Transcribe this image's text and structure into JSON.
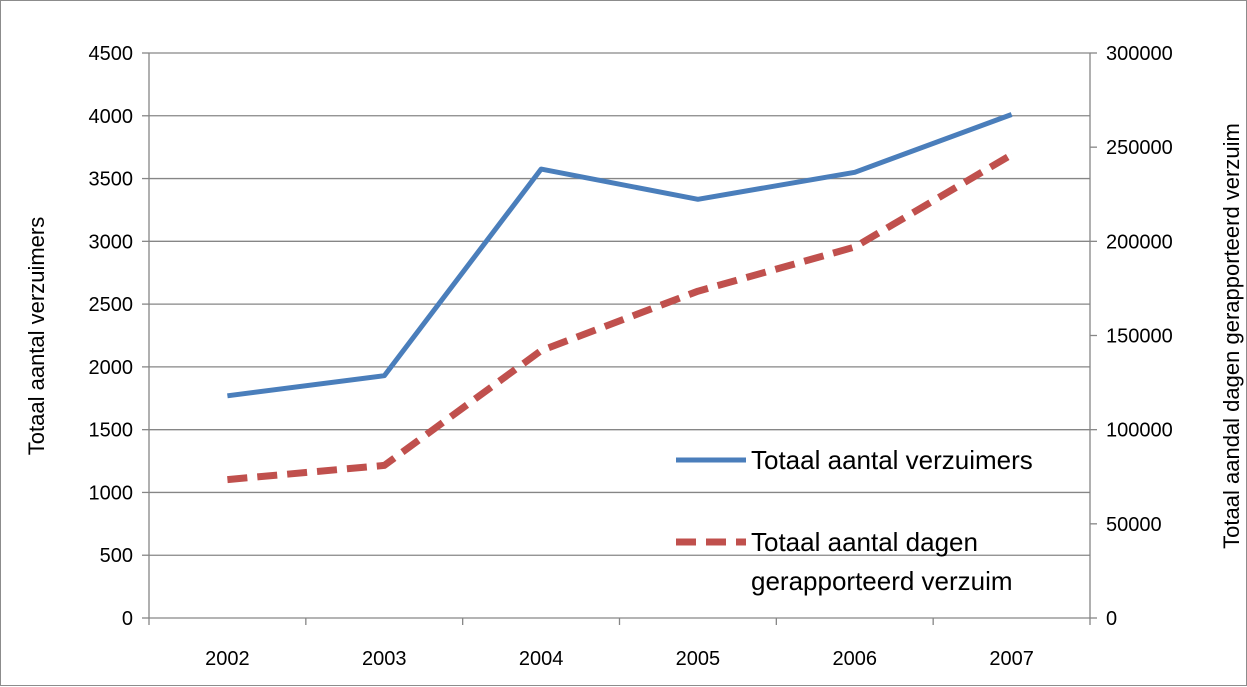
{
  "chart_data": {
    "type": "line",
    "categories": [
      "2002",
      "2003",
      "2004",
      "2005",
      "2006",
      "2007"
    ],
    "series": [
      {
        "name": "Totaal aantal verzuimers",
        "axis": "left",
        "color": "#4a7ebb",
        "style": "solid",
        "values": [
          1770,
          1930,
          3575,
          3335,
          3550,
          4010
        ]
      },
      {
        "name": "Totaal aantal dagen gerapporteerd verzuim",
        "legend_lines": [
          "Totaal aantal dagen",
          "gerapporteerd verzuim"
        ],
        "axis": "right",
        "color": "#c0504d",
        "style": "dashed",
        "values": [
          73500,
          81000,
          142000,
          173500,
          197000,
          246000
        ]
      }
    ],
    "ylabel": "Totaal aantal verzuimers",
    "ylim": [
      0,
      4500
    ],
    "yticks": [
      "0",
      "500",
      "1000",
      "1500",
      "2000",
      "2500",
      "3000",
      "3500",
      "4000",
      "4500"
    ],
    "y2label": "Totaal aandal dagen gerapporteerd verzuim",
    "y2lim": [
      0,
      300000
    ],
    "y2ticks": [
      "0",
      "50000",
      "100000",
      "150000",
      "200000",
      "250000",
      "300000"
    ],
    "grid": true,
    "legend_position": "bottom-right inside plot",
    "colors": {
      "grid": "#868686",
      "axis": "#868686"
    }
  }
}
